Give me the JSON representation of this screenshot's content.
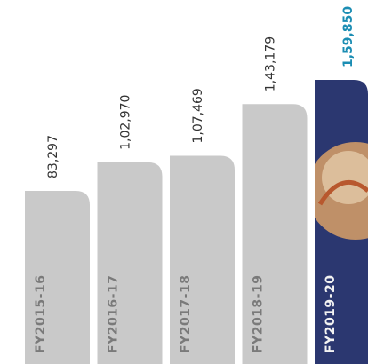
{
  "chart_data": {
    "type": "bar",
    "categories": [
      "FY2015-16",
      "FY2016-17",
      "FY2017-18",
      "FY2018-19",
      "FY2019-20"
    ],
    "values": [
      83297,
      102970,
      107469,
      143179,
      159850
    ],
    "value_labels": [
      "83,297",
      "1,02,970",
      "1,07,469",
      "1,43,179",
      "1,59,850"
    ],
    "colors": [
      "#c9c9c9",
      "#c9c9c9",
      "#c9c9c9",
      "#c9c9c9",
      "#2b3770"
    ],
    "value_label_colors": [
      "#333333",
      "#333333",
      "#333333",
      "#333333",
      "#1b8db3"
    ],
    "category_label_colors": [
      "#7a7a7a",
      "#7a7a7a",
      "#7a7a7a",
      "#7a7a7a",
      "#f2f2f2"
    ]
  }
}
